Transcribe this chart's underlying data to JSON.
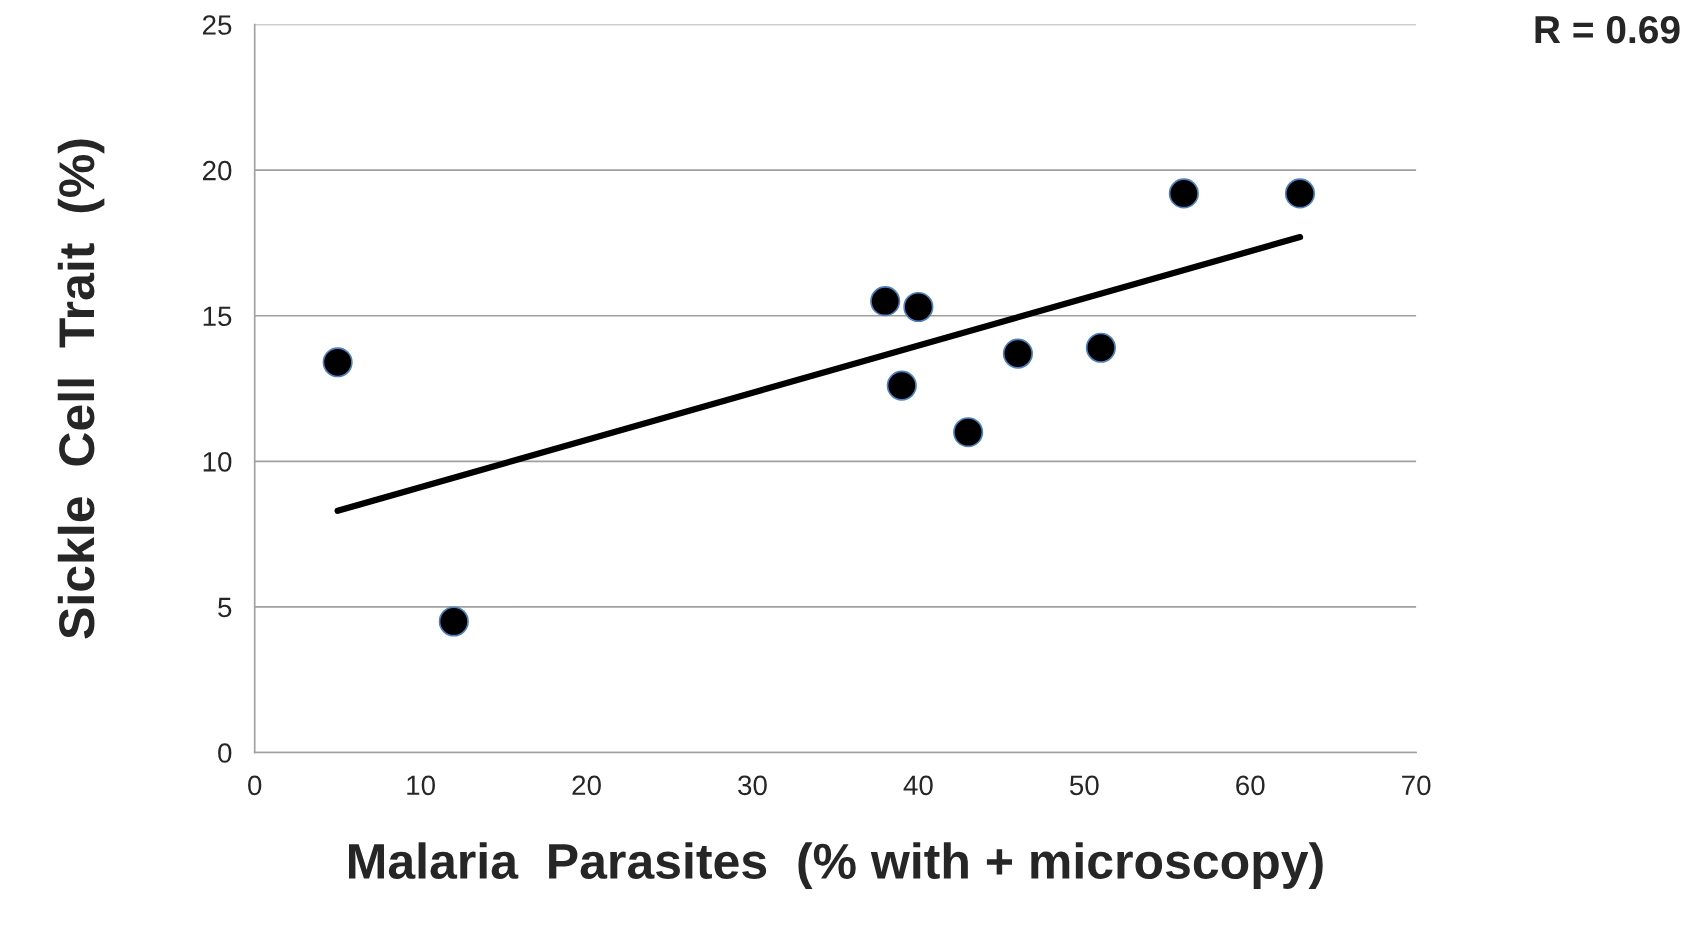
{
  "chart_data": {
    "type": "scatter",
    "xlabel": "Malaria  Parasites  (% with + microscopy)",
    "ylabel": "Sickle  Cell  Trait  (%)",
    "annotations": [
      "R = 0.69"
    ],
    "series": [
      {
        "color": "#000000",
        "x": [
          5,
          12,
          38,
          39,
          40,
          43,
          46,
          51,
          56,
          63
        ],
        "values": [
          13.4,
          4.5,
          15.5,
          12.6,
          15.3,
          11.0,
          13.7,
          13.9,
          19.2,
          19.2
        ],
        "marker": "circle"
      },
      {
        "type": "line",
        "color": "#000000",
        "x": [
          5,
          63
        ],
        "values": [
          8.3,
          17.7
        ]
      }
    ],
    "xlim": [
      0,
      70
    ],
    "xticks": [
      0,
      10,
      20,
      30,
      40,
      50,
      60,
      70
    ],
    "ylim": [
      0,
      25
    ],
    "yticks": [
      0,
      5,
      10,
      15,
      20,
      25
    ],
    "grid": "y",
    "legend": false
  }
}
